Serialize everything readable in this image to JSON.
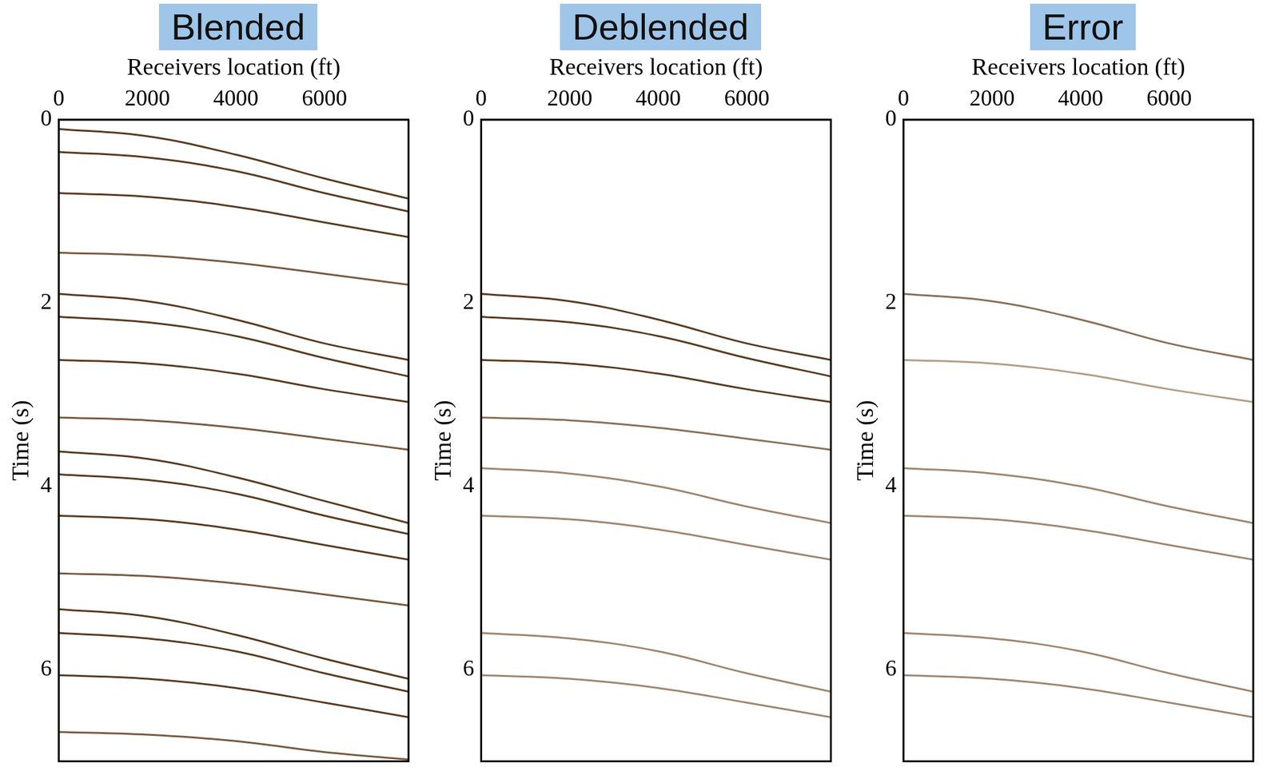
{
  "chart_data": [
    {
      "type": "line",
      "title": "Blended",
      "x_label": "Receivers location (ft)",
      "y_label": "Time (s)",
      "x": [
        0,
        2000,
        4000,
        6000,
        7900
      ],
      "xlim": [
        0,
        7900
      ],
      "xticks": [
        0,
        2000,
        4000,
        6000
      ],
      "ylim": [
        0,
        7
      ],
      "yticks": [
        0,
        2,
        4,
        6
      ],
      "grid": false,
      "series": [
        {
          "color": "#5a3a1e",
          "values": [
            0.1,
            0.18,
            0.38,
            0.64,
            0.86
          ]
        },
        {
          "color": "#5a3a1e",
          "values": [
            0.35,
            0.41,
            0.56,
            0.8,
            1.0
          ]
        },
        {
          "color": "#5a3a1e",
          "values": [
            0.8,
            0.84,
            0.95,
            1.12,
            1.28
          ]
        },
        {
          "color": "#7a5a3e",
          "values": [
            1.45,
            1.48,
            1.56,
            1.68,
            1.8
          ]
        },
        {
          "color": "#5a3a1e",
          "values": [
            1.9,
            1.98,
            2.18,
            2.44,
            2.62
          ]
        },
        {
          "color": "#5a3a1e",
          "values": [
            2.15,
            2.21,
            2.36,
            2.6,
            2.8
          ]
        },
        {
          "color": "#5a3a1e",
          "values": [
            2.62,
            2.66,
            2.77,
            2.94,
            3.08
          ]
        },
        {
          "color": "#7a5a3e",
          "values": [
            3.25,
            3.28,
            3.36,
            3.48,
            3.6
          ]
        },
        {
          "color": "#5a3a1e",
          "values": [
            3.62,
            3.7,
            3.9,
            4.16,
            4.4
          ]
        },
        {
          "color": "#5a3a1e",
          "values": [
            3.87,
            3.93,
            4.08,
            4.32,
            4.52
          ]
        },
        {
          "color": "#5a3a1e",
          "values": [
            4.32,
            4.36,
            4.47,
            4.64,
            4.8
          ]
        },
        {
          "color": "#7a5a3e",
          "values": [
            4.95,
            4.98,
            5.06,
            5.18,
            5.3
          ]
        },
        {
          "color": "#5a3a1e",
          "values": [
            5.34,
            5.42,
            5.62,
            5.88,
            6.1
          ]
        },
        {
          "color": "#5a3a1e",
          "values": [
            5.6,
            5.66,
            5.8,
            6.04,
            6.24
          ]
        },
        {
          "color": "#5a3a1e",
          "values": [
            6.06,
            6.1,
            6.2,
            6.36,
            6.52
          ]
        },
        {
          "color": "#7a5a3e",
          "values": [
            6.68,
            6.71,
            6.78,
            6.9,
            6.98
          ]
        }
      ]
    },
    {
      "type": "line",
      "title": "Deblended",
      "x_label": "Receivers location (ft)",
      "y_label": "Time (s)",
      "x": [
        0,
        2000,
        4000,
        6000,
        7900
      ],
      "xlim": [
        0,
        7900
      ],
      "xticks": [
        0,
        2000,
        4000,
        6000
      ],
      "ylim": [
        0,
        7
      ],
      "yticks": [
        0,
        2,
        4,
        6
      ],
      "grid": false,
      "series": [
        {
          "color": "#5a3a1e",
          "values": [
            1.9,
            1.98,
            2.18,
            2.44,
            2.62
          ]
        },
        {
          "color": "#5a3a1e",
          "values": [
            2.15,
            2.21,
            2.36,
            2.6,
            2.8
          ]
        },
        {
          "color": "#5a3a1e",
          "values": [
            2.62,
            2.66,
            2.77,
            2.94,
            3.08
          ]
        },
        {
          "color": "#8a7058",
          "values": [
            3.25,
            3.28,
            3.36,
            3.48,
            3.6
          ]
        },
        {
          "color": "#a08670",
          "values": [
            3.8,
            3.86,
            4.0,
            4.22,
            4.4
          ]
        },
        {
          "color": "#a08670",
          "values": [
            4.32,
            4.36,
            4.47,
            4.64,
            4.8
          ]
        },
        {
          "color": "#a08670",
          "values": [
            5.6,
            5.66,
            5.8,
            6.04,
            6.24
          ]
        },
        {
          "color": "#a08670",
          "values": [
            6.06,
            6.1,
            6.2,
            6.36,
            6.52
          ]
        }
      ]
    },
    {
      "type": "line",
      "title": "Error",
      "x_label": "Receivers location (ft)",
      "y_label": "Time (s)",
      "x": [
        0,
        2000,
        4000,
        6000,
        7900
      ],
      "xlim": [
        0,
        7900
      ],
      "xticks": [
        0,
        2000,
        4000,
        6000
      ],
      "ylim": [
        0,
        7
      ],
      "yticks": [
        0,
        2,
        4,
        6
      ],
      "grid": false,
      "series": [
        {
          "color": "#8a7058",
          "values": [
            1.9,
            1.98,
            2.18,
            2.44,
            2.62
          ]
        },
        {
          "color": "#b59d86",
          "values": [
            2.62,
            2.66,
            2.77,
            2.94,
            3.08
          ]
        },
        {
          "color": "#a08670",
          "values": [
            3.8,
            3.86,
            4.0,
            4.22,
            4.4
          ]
        },
        {
          "color": "#a08670",
          "values": [
            4.32,
            4.36,
            4.47,
            4.64,
            4.8
          ]
        },
        {
          "color": "#a08670",
          "values": [
            5.6,
            5.66,
            5.8,
            6.04,
            6.24
          ]
        },
        {
          "color": "#a08670",
          "values": [
            6.06,
            6.1,
            6.2,
            6.36,
            6.52
          ]
        }
      ]
    }
  ]
}
